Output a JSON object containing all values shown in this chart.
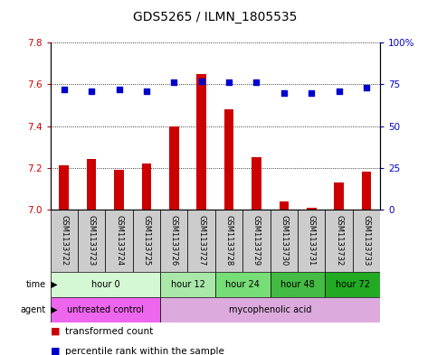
{
  "title": "GDS5265 / ILMN_1805535",
  "samples": [
    "GSM1133722",
    "GSM1133723",
    "GSM1133724",
    "GSM1133725",
    "GSM1133726",
    "GSM1133727",
    "GSM1133728",
    "GSM1133729",
    "GSM1133730",
    "GSM1133731",
    "GSM1133732",
    "GSM1133733"
  ],
  "transformed_counts": [
    7.21,
    7.24,
    7.19,
    7.22,
    7.4,
    7.65,
    7.48,
    7.25,
    7.04,
    7.01,
    7.13,
    7.18
  ],
  "percentile_ranks": [
    72,
    71,
    72,
    71,
    76,
    77,
    76,
    76,
    70,
    70,
    71,
    73
  ],
  "ylim_left": [
    7.0,
    7.8
  ],
  "ylim_right": [
    0,
    100
  ],
  "yticks_left": [
    7.0,
    7.2,
    7.4,
    7.6,
    7.8
  ],
  "yticks_right": [
    0,
    25,
    50,
    75,
    100
  ],
  "bar_color": "#cc0000",
  "dot_color": "#0000cc",
  "time_groups": [
    {
      "label": "hour 0",
      "start": 0,
      "end": 4,
      "color": "#d4f7d4"
    },
    {
      "label": "hour 12",
      "start": 4,
      "end": 6,
      "color": "#aae8aa"
    },
    {
      "label": "hour 24",
      "start": 6,
      "end": 8,
      "color": "#77dd77"
    },
    {
      "label": "hour 48",
      "start": 8,
      "end": 10,
      "color": "#44bb44"
    },
    {
      "label": "hour 72",
      "start": 10,
      "end": 12,
      "color": "#22aa22"
    }
  ],
  "agent_groups": [
    {
      "label": "untreated control",
      "start": 0,
      "end": 4,
      "color": "#ee66ee"
    },
    {
      "label": "mycophenolic acid",
      "start": 4,
      "end": 12,
      "color": "#ddaadd"
    }
  ],
  "background_color": "#ffffff",
  "sample_bg_color": "#cccccc",
  "font_size_labels": 7,
  "font_size_ticks": 7.5,
  "font_size_title": 10,
  "font_size_sample": 6,
  "font_size_legend": 7.5
}
